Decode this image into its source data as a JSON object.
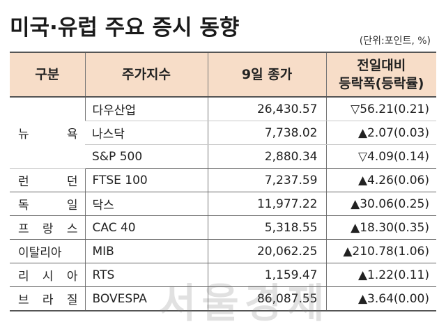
{
  "title": "미국·유럽 주요 증시 동향",
  "unit": "(단위:포인트, %)",
  "headers": {
    "region": "구분",
    "index": "주가지수",
    "close": "9일 종가",
    "change_line1": "전일대비",
    "change_line2": "등락폭(등락률)"
  },
  "rows": [
    {
      "region": "뉴 욕",
      "index": "다우산업",
      "close": "26,430.57",
      "change": "▽56.21(0.21)"
    },
    {
      "region": "",
      "index": "나스닥",
      "close": "7,738.02",
      "change": "▲2.07(0.03)"
    },
    {
      "region": "",
      "index": "S&P 500",
      "close": "2,880.34",
      "change": "▽4.09(0.14)"
    },
    {
      "region": "런 던",
      "index": "FTSE 100",
      "close": "7,237.59",
      "change": "▲4.26(0.06)"
    },
    {
      "region": "독 일",
      "index": "닥스",
      "close": "11,977.22",
      "change": "▲30.06(0.25)"
    },
    {
      "region": "프 랑 스",
      "index": "CAC 40",
      "close": "5,318.55",
      "change": "▲18.30(0.35)"
    },
    {
      "region": "이탈리아",
      "index": "MIB",
      "close": "20,062.25",
      "change": "▲210.78(1.06)"
    },
    {
      "region": "리 시 아",
      "index": "RTS",
      "close": "1,159.47",
      "change": "▲1.22(0.11)"
    },
    {
      "region": "브 라 질",
      "index": "BOVESPA",
      "close": "86,087.55",
      "change": "▲3.64(0.00)"
    }
  ],
  "watermark": "서울경제"
}
